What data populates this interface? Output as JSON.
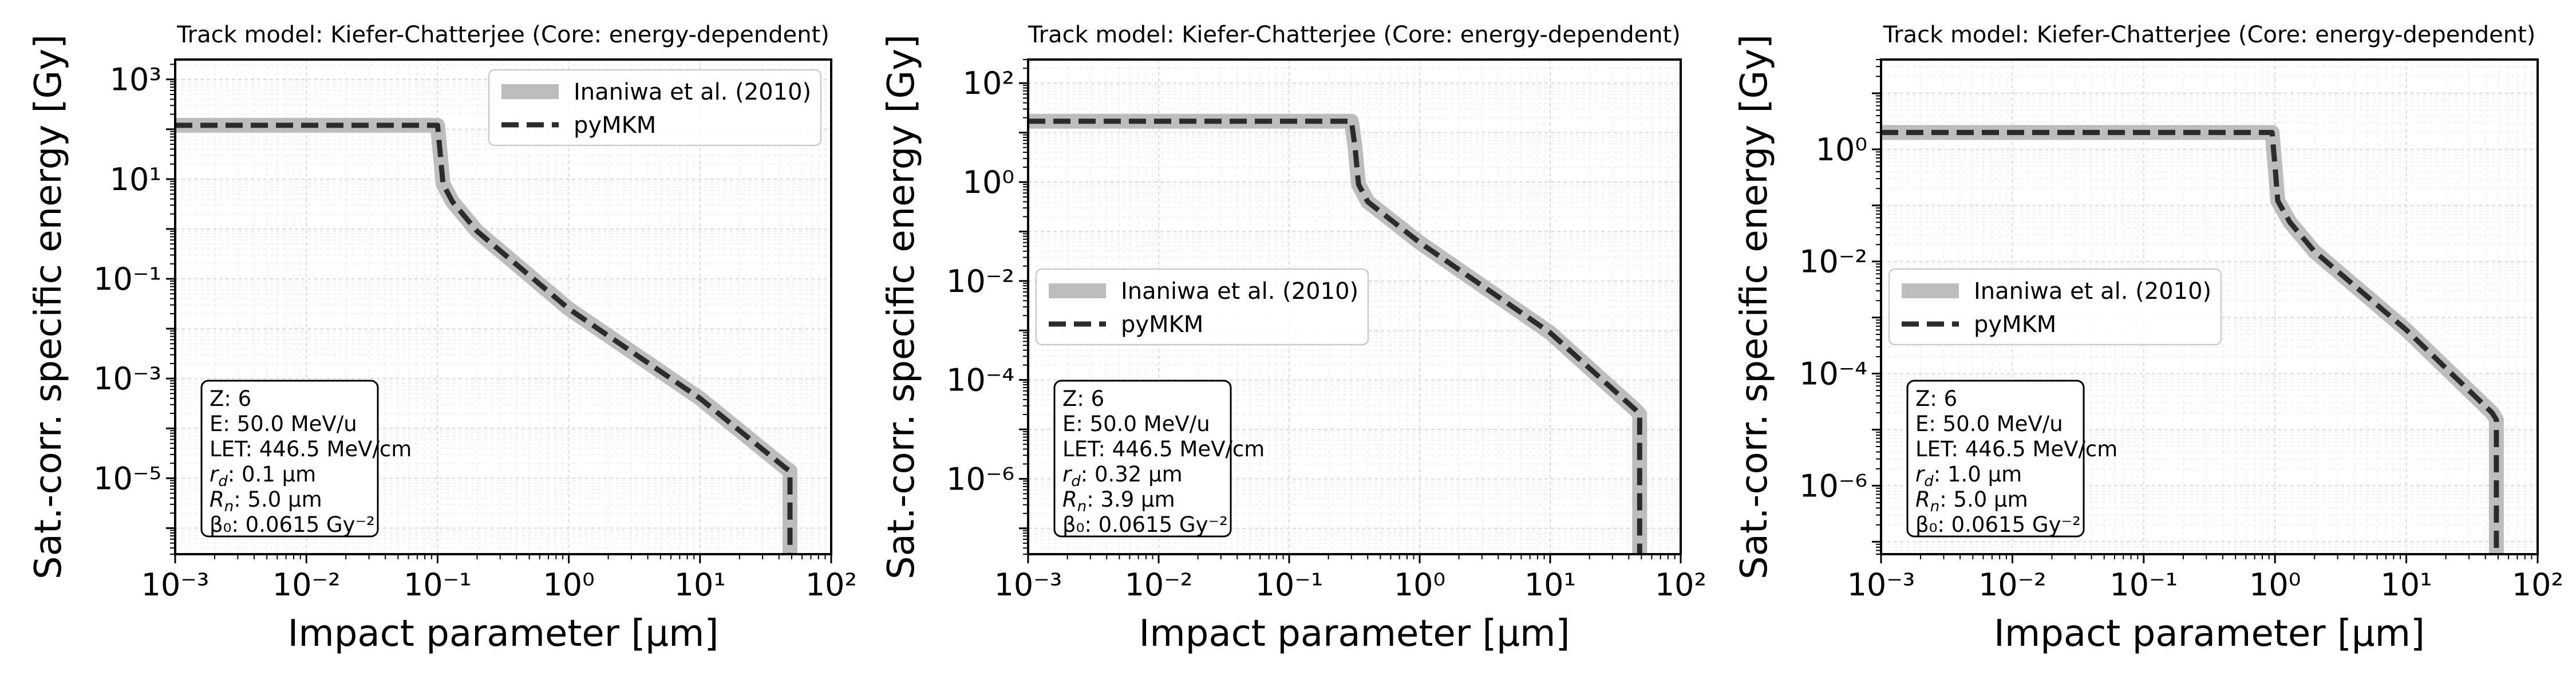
{
  "figure": {
    "panels": [
      {
        "title": "Track model: Kiefer-Chatterjee (Core: energy-dependent)",
        "ylabel": "Sat.-corr. specific energy [Gy]",
        "xlabel": "Impact parameter [μm]",
        "legend": [
          "Inaniwa et al. (2010)",
          "pyMKM"
        ],
        "info": [
          "Z: 6",
          "E: 50.0 MeV/u",
          "LET: 446.5 MeV/cm",
          "r_d: 0.1 μm",
          "R_n: 5.0 μm",
          "β₀: 0.0615 Gy⁻²"
        ]
      },
      {
        "title": "Track model: Kiefer-Chatterjee (Core: energy-dependent)",
        "ylabel": "Sat.-corr. specific energy [Gy]",
        "xlabel": "Impact parameter [μm]",
        "legend": [
          "Inaniwa et al. (2010)",
          "pyMKM"
        ],
        "info": [
          "Z: 6",
          "E: 50.0 MeV/u",
          "LET: 446.5 MeV/cm",
          "r_d: 0.32 μm",
          "R_n: 3.9 μm",
          "β₀: 0.0615 Gy⁻²"
        ]
      },
      {
        "title": "Track model: Kiefer-Chatterjee (Core: energy-dependent)",
        "ylabel": "Sat.-corr. specific energy [Gy]",
        "xlabel": "Impact parameter [μm]",
        "legend": [
          "Inaniwa et al. (2010)",
          "pyMKM"
        ],
        "info": [
          "Z: 6",
          "E: 50.0 MeV/u",
          "LET: 446.5 MeV/cm",
          "r_d: 1.0 μm",
          "R_n: 5.0 μm",
          "β₀: 0.0615 Gy⁻²"
        ]
      }
    ]
  },
  "chart_data": [
    {
      "type": "line",
      "title": "Track model: Kiefer-Chatterjee (Core: energy-dependent)",
      "xlabel": "Impact parameter [μm]",
      "ylabel": "Sat.-corr. specific energy [Gy]",
      "xscale": "log",
      "yscale": "log",
      "xlim": [
        0.001,
        100
      ],
      "ylim": [
        3e-07,
        2500
      ],
      "xticks": [
        -3,
        -2,
        -1,
        0,
        1,
        2
      ],
      "yticks": [
        -5,
        -3,
        -1,
        1,
        3
      ],
      "legend_position": "top-right",
      "grid": true,
      "series": [
        {
          "name": "Inaniwa et al. (2010)",
          "style": "solid",
          "color": "#bdbdbd",
          "x": [
            0.001,
            0.1,
            0.105,
            0.11,
            0.13,
            0.2,
            1,
            10,
            45,
            48.5,
            48.5
          ],
          "y": [
            120,
            120,
            30,
            8,
            3.5,
            0.9,
            0.025,
            0.0004,
            1.6e-05,
            1.4e-05,
            3e-07
          ]
        },
        {
          "name": "pyMKM",
          "style": "dashed",
          "color": "#2b2b2b",
          "x": [
            0.001,
            0.1,
            0.105,
            0.11,
            0.13,
            0.2,
            1,
            10,
            45,
            48.5,
            48.5
          ],
          "y": [
            120,
            120,
            30,
            8,
            3.5,
            0.9,
            0.025,
            0.0004,
            1.6e-05,
            1.4e-05,
            3e-07
          ]
        }
      ]
    },
    {
      "type": "line",
      "title": "Track model: Kiefer-Chatterjee (Core: energy-dependent)",
      "xlabel": "Impact parameter [μm]",
      "ylabel": "Sat.-corr. specific energy [Gy]",
      "xscale": "log",
      "yscale": "log",
      "xlim": [
        0.001,
        100
      ],
      "ylim": [
        3e-08,
        300
      ],
      "xticks": [
        -3,
        -2,
        -1,
        0,
        1,
        2
      ],
      "yticks": [
        -6,
        -4,
        -2,
        0,
        2
      ],
      "legend_position": "center-left",
      "grid": true,
      "series": [
        {
          "name": "Inaniwa et al. (2010)",
          "style": "solid",
          "color": "#bdbdbd",
          "x": [
            0.001,
            0.3,
            0.32,
            0.34,
            0.4,
            1,
            10,
            45,
            48.5,
            48.5
          ],
          "y": [
            17,
            17,
            5,
            0.9,
            0.4,
            0.06,
            0.0009,
            2.5e-05,
            2e-05,
            3e-08
          ]
        },
        {
          "name": "pyMKM",
          "style": "dashed",
          "color": "#2b2b2b",
          "x": [
            0.001,
            0.3,
            0.32,
            0.34,
            0.4,
            1,
            10,
            45,
            48.5,
            48.5
          ],
          "y": [
            17,
            17,
            5,
            0.9,
            0.4,
            0.06,
            0.0009,
            2.5e-05,
            2e-05,
            3e-08
          ]
        }
      ]
    },
    {
      "type": "line",
      "title": "Track model: Kiefer-Chatterjee (Core: energy-dependent)",
      "xlabel": "Impact parameter [μm]",
      "ylabel": "Sat.-corr. specific energy [Gy]",
      "xscale": "log",
      "yscale": "log",
      "xlim": [
        0.001,
        100
      ],
      "ylim": [
        6e-08,
        40
      ],
      "xticks": [
        -3,
        -2,
        -1,
        0,
        1,
        2
      ],
      "yticks": [
        -6,
        -4,
        -2,
        0
      ],
      "legend_position": "center-left",
      "grid": true,
      "series": [
        {
          "name": "Inaniwa et al. (2010)",
          "style": "solid",
          "color": "#bdbdbd",
          "x": [
            0.001,
            0.95,
            1.0,
            1.05,
            1.3,
            2,
            10,
            45,
            48.5,
            48.5
          ],
          "y": [
            2,
            2,
            0.5,
            0.12,
            0.05,
            0.015,
            0.0006,
            2e-05,
            1.5e-05,
            6e-08
          ]
        },
        {
          "name": "pyMKM",
          "style": "dashed",
          "color": "#2b2b2b",
          "x": [
            0.001,
            0.95,
            1.0,
            1.05,
            1.3,
            2,
            10,
            45,
            48.5,
            48.5
          ],
          "y": [
            2,
            2,
            0.5,
            0.12,
            0.05,
            0.015,
            0.0006,
            2e-05,
            1.5e-05,
            6e-08
          ]
        }
      ]
    }
  ]
}
